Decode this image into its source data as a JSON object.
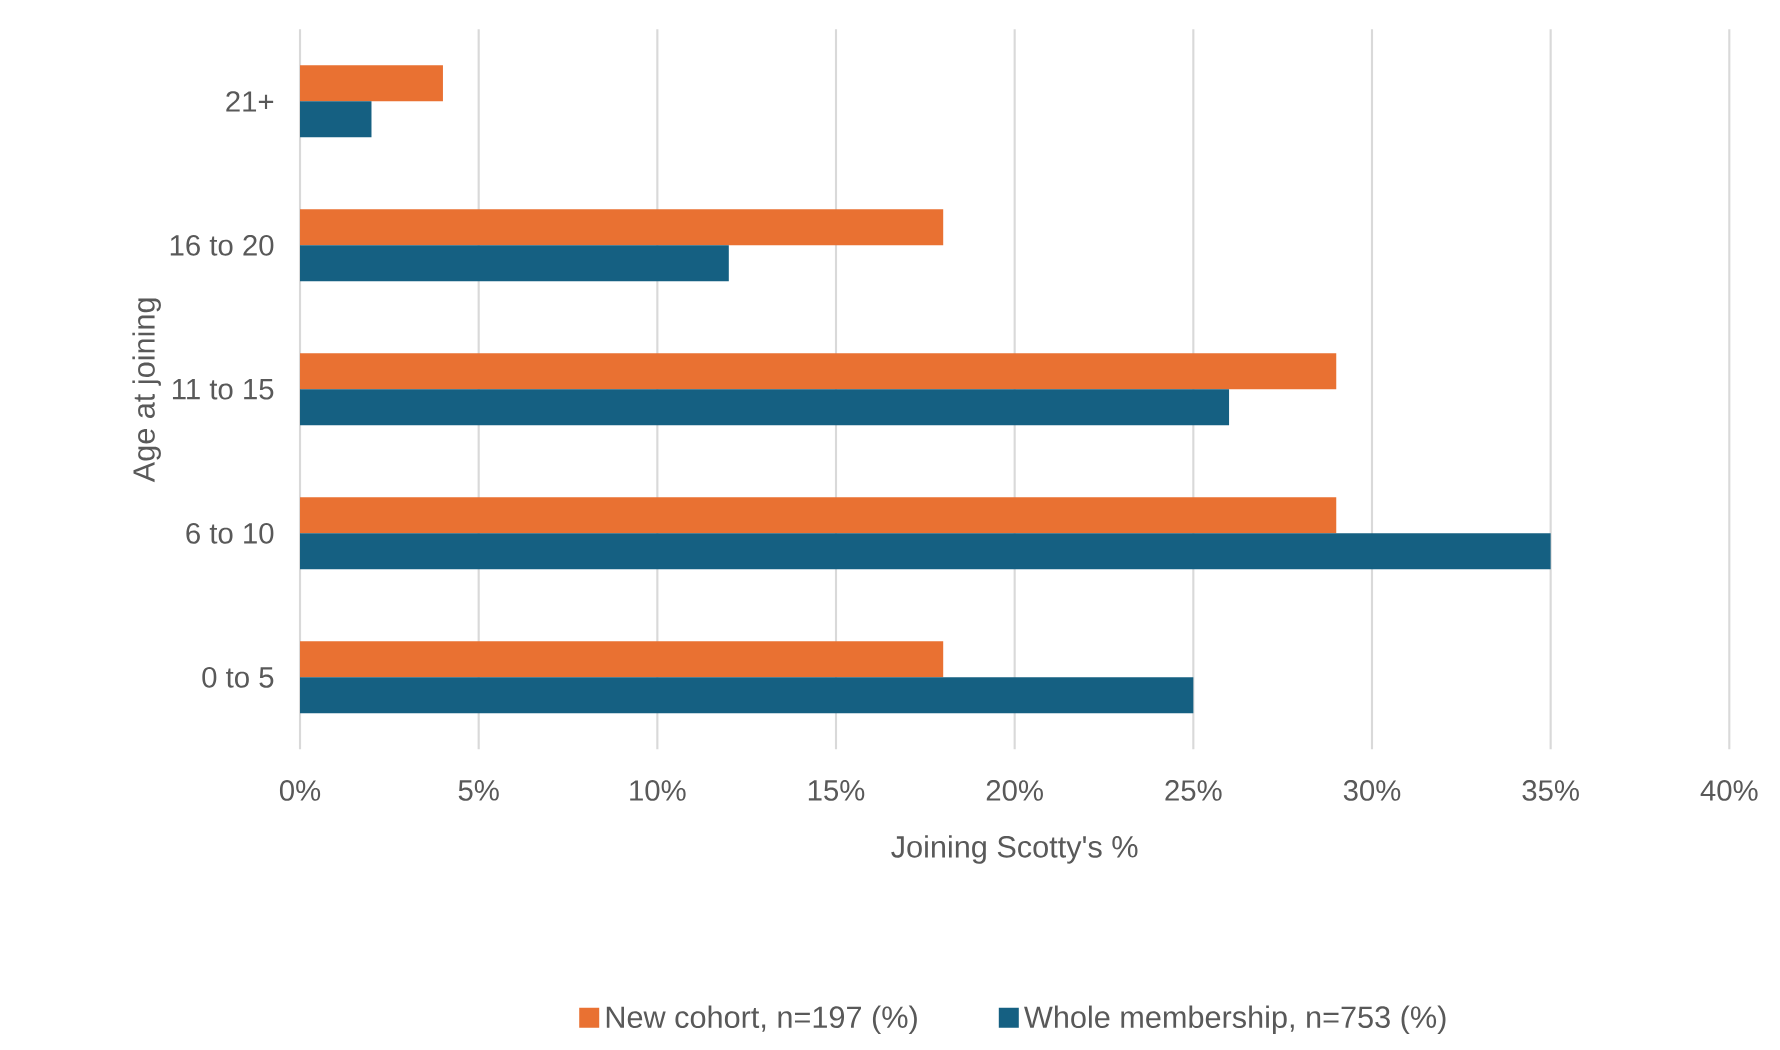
{
  "chart_data": {
    "type": "bar",
    "orientation": "horizontal",
    "xlabel": "Joining Scotty's %",
    "ylabel": "Age at joining",
    "categories": [
      "21+",
      "16 to 20",
      "11 to 15",
      "6 to 10",
      "0 to 5"
    ],
    "series": [
      {
        "name": "New cohort, n=197 (%)",
        "color": "#e97132",
        "values": [
          4,
          18,
          29,
          29,
          18
        ]
      },
      {
        "name": "Whole membership, n=753  (%)",
        "color": "#156082",
        "values": [
          2,
          12,
          26,
          35,
          25
        ]
      }
    ],
    "xlim": [
      0,
      40
    ],
    "xticks": [
      {
        "value": 0,
        "label": "0%"
      },
      {
        "value": 5,
        "label": "5%"
      },
      {
        "value": 10,
        "label": "10%"
      },
      {
        "value": 15,
        "label": "15%"
      },
      {
        "value": 20,
        "label": "20%"
      },
      {
        "value": 25,
        "label": "25%"
      },
      {
        "value": 30,
        "label": "30%"
      },
      {
        "value": 35,
        "label": "35%"
      },
      {
        "value": 40,
        "label": "40%"
      }
    ],
    "grid": "x",
    "legend": "bottom"
  }
}
